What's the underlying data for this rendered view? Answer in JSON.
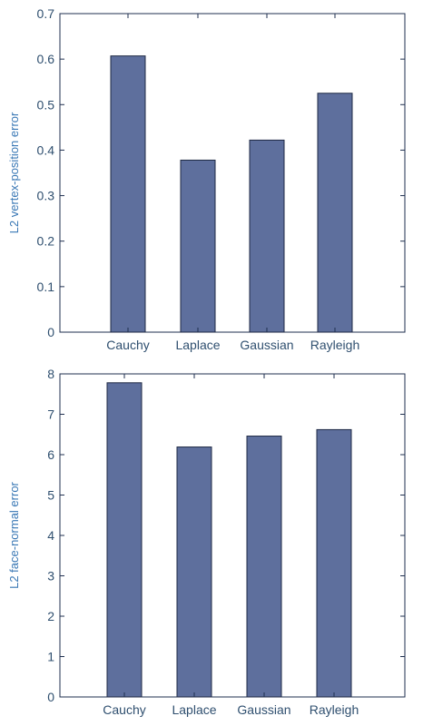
{
  "chart_data": [
    {
      "type": "bar",
      "categories": [
        "Cauchy",
        "Laplace",
        "Gaussian",
        "Rayleigh"
      ],
      "values": [
        0.607,
        0.378,
        0.422,
        0.525
      ],
      "xlabel": "",
      "ylabel": "L2 vertex-position error",
      "ylim": [
        0,
        0.7
      ],
      "yticks": [
        "0",
        "0.1",
        "0.2",
        "0.3",
        "0.4",
        "0.5",
        "0.6",
        "0.7"
      ],
      "grid": false,
      "bar_color": "#5e6f9d"
    },
    {
      "type": "bar",
      "categories": [
        "Cauchy",
        "Laplace",
        "Gaussian",
        "Rayleigh"
      ],
      "values": [
        7.78,
        6.19,
        6.46,
        6.62
      ],
      "xlabel": "",
      "ylabel": "L2 face-normal error",
      "ylim": [
        0,
        8
      ],
      "yticks": [
        "0",
        "1",
        "2",
        "3",
        "4",
        "5",
        "6",
        "7",
        "8"
      ],
      "grid": false,
      "bar_color": "#5e6f9d"
    }
  ]
}
